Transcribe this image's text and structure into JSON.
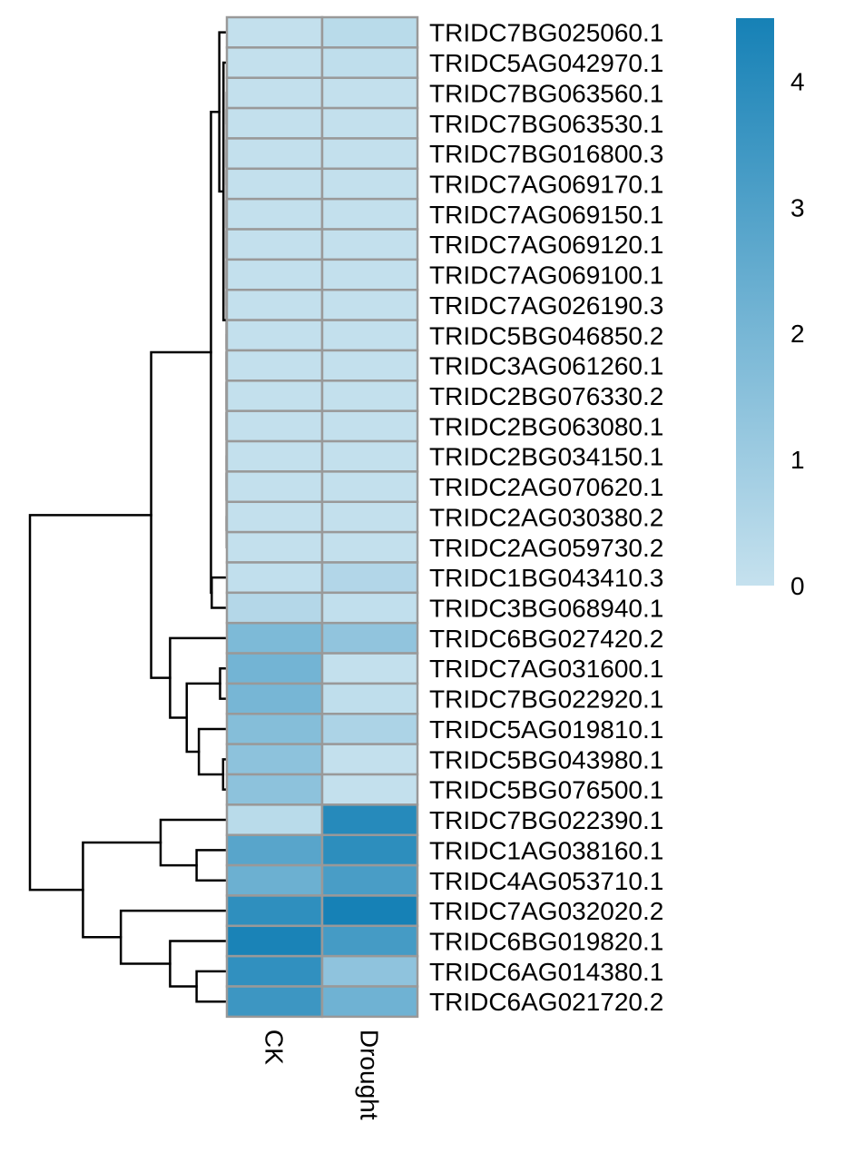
{
  "chart_data": {
    "type": "heatmap",
    "columns": [
      "CK",
      "Drought"
    ],
    "rows": [
      "TRIDC7BG025060.1",
      "TRIDC5AG042970.1",
      "TRIDC7BG063560.1",
      "TRIDC7BG063530.1",
      "TRIDC7BG016800.3",
      "TRIDC7AG069170.1",
      "TRIDC7AG069150.1",
      "TRIDC7AG069120.1",
      "TRIDC7AG069100.1",
      "TRIDC7AG026190.3",
      "TRIDC5BG046850.2",
      "TRIDC3AG061260.1",
      "TRIDC2BG076330.2",
      "TRIDC2BG063080.1",
      "TRIDC2BG034150.1",
      "TRIDC2AG070620.1",
      "TRIDC2AG030380.2",
      "TRIDC2AG059730.2",
      "TRIDC1BG043410.3",
      "TRIDC3BG068940.1",
      "TRIDC6BG027420.2",
      "TRIDC7AG031600.1",
      "TRIDC7BG022920.1",
      "TRIDC5AG019810.1",
      "TRIDC5BG043980.1",
      "TRIDC5BG076500.1",
      "TRIDC7BG022390.1",
      "TRIDC1AG038160.1",
      "TRIDC4AG053710.1",
      "TRIDC7AG032020.2",
      "TRIDC6BG019820.1",
      "TRIDC6AG014380.1",
      "TRIDC6AG021720.2"
    ],
    "values": [
      [
        0.05,
        0.3
      ],
      [
        0.05,
        0.15
      ],
      [
        0.05,
        0.05
      ],
      [
        0.05,
        0.05
      ],
      [
        0.05,
        0.05
      ],
      [
        0.05,
        0.05
      ],
      [
        0.05,
        0.05
      ],
      [
        0.05,
        0.05
      ],
      [
        0.05,
        0.05
      ],
      [
        0.05,
        0.05
      ],
      [
        0.05,
        0.05
      ],
      [
        0.05,
        0.05
      ],
      [
        0.05,
        0.05
      ],
      [
        0.05,
        0.05
      ],
      [
        0.05,
        0.05
      ],
      [
        0.05,
        0.05
      ],
      [
        0.05,
        0.05
      ],
      [
        0.05,
        0.05
      ],
      [
        0.1,
        0.5
      ],
      [
        0.45,
        0.1
      ],
      [
        1.85,
        1.35
      ],
      [
        2.1,
        0.05
      ],
      [
        2.0,
        0.15
      ],
      [
        1.65,
        0.65
      ],
      [
        1.45,
        0.05
      ],
      [
        1.45,
        0.05
      ],
      [
        0.3,
        4.1
      ],
      [
        2.8,
        3.9
      ],
      [
        2.3,
        3.2
      ],
      [
        3.85,
        4.5
      ],
      [
        4.4,
        3.3
      ],
      [
        3.8,
        1.4
      ],
      [
        3.5,
        2.2
      ]
    ],
    "legend": {
      "ticks": [
        0,
        1,
        2,
        3,
        4
      ],
      "min": 0,
      "max": 4.5,
      "color_low": "#c5e1ee",
      "color_high": "#1681b6"
    },
    "cell_border_color": "#999999",
    "dendrogram_color": "#000000",
    "dendrogram": {
      "merges": [
        [
          -3,
          -4
        ],
        [
          -5,
          -6
        ],
        [
          -7,
          -8
        ],
        [
          -9,
          -10
        ],
        [
          -11,
          -12
        ],
        [
          -13,
          -14
        ],
        [
          -15,
          -16
        ],
        [
          -17,
          -18
        ],
        [
          1,
          2
        ],
        [
          3,
          4
        ],
        [
          5,
          6
        ],
        [
          7,
          8
        ],
        [
          9,
          10
        ],
        [
          11,
          12
        ],
        [
          13,
          14
        ],
        [
          -2,
          15
        ],
        [
          -1,
          16
        ],
        [
          -19,
          -20
        ],
        [
          17,
          18
        ],
        [
          -25,
          -26
        ],
        [
          -24,
          20
        ],
        [
          -22,
          -23
        ],
        [
          22,
          21
        ],
        [
          -21,
          23
        ],
        [
          19,
          24
        ],
        [
          -28,
          -29
        ],
        [
          -27,
          26
        ],
        [
          -32,
          -33
        ],
        [
          -31,
          28
        ],
        [
          -30,
          29
        ],
        [
          27,
          30
        ],
        [
          25,
          31
        ]
      ],
      "heights": [
        0.001,
        0.001,
        0.001,
        0.001,
        0.001,
        0.001,
        0.001,
        0.001,
        0.002,
        0.002,
        0.002,
        0.002,
        0.003,
        0.003,
        0.004,
        0.09,
        0.2,
        0.4,
        0.42,
        0.1,
        0.74,
        0.18,
        1.06,
        1.5,
        2.0,
        0.8,
        1.75,
        0.8,
        1.5,
        2.8,
        3.8,
        5.2
      ]
    }
  }
}
